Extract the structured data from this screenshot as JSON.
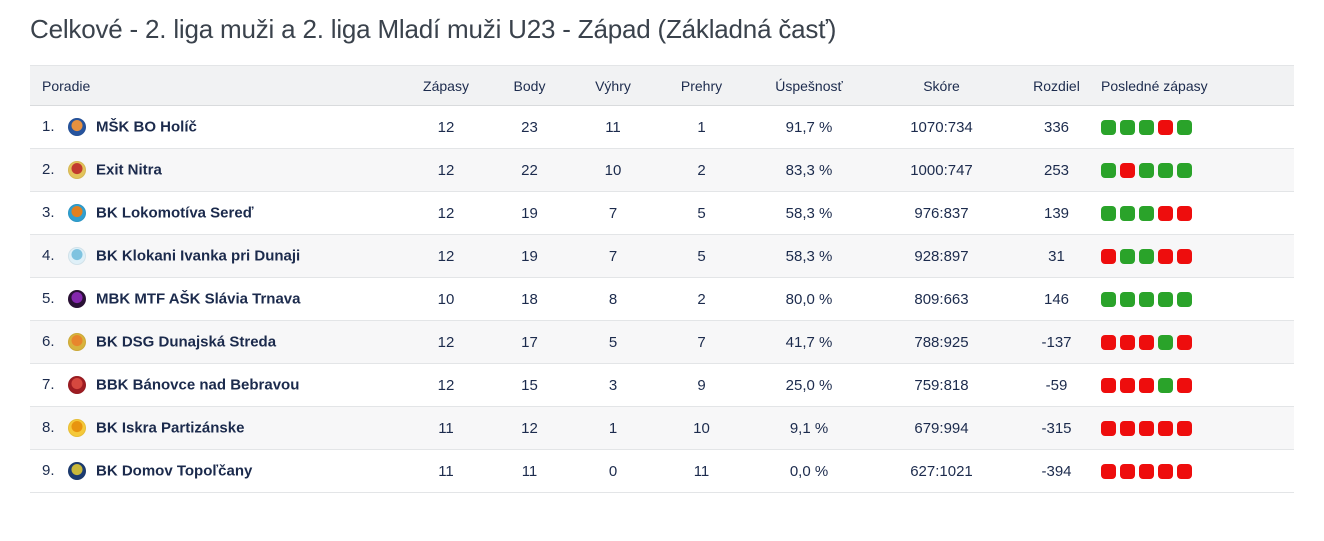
{
  "page": {
    "title": "Celkové - 2. liga muži a 2. liga Mladí muži U23 - Západ (Základná časť)"
  },
  "table": {
    "columns": [
      "Poradie",
      "Zápasy",
      "Body",
      "Výhry",
      "Prehry",
      "Úspešnosť",
      "Skóre",
      "Rozdiel",
      "Posledné zápasy"
    ],
    "result_colors": {
      "win": "#2aa32a",
      "loss": "#ee0d0d"
    },
    "rows": [
      {
        "rank": "1.",
        "team": "MŠK BO Holíč",
        "logo_colors": [
          "#27549e",
          "#e8913f"
        ],
        "games": "12",
        "points": "23",
        "wins": "11",
        "losses": "1",
        "success": "91,7 %",
        "score": "1070:734",
        "diff": "336",
        "last_games": [
          "W",
          "W",
          "W",
          "L",
          "W"
        ]
      },
      {
        "rank": "2.",
        "team": "Exit Nitra",
        "logo_colors": [
          "#e3c35a",
          "#c23a2e"
        ],
        "games": "12",
        "points": "22",
        "wins": "10",
        "losses": "2",
        "success": "83,3 %",
        "score": "1000:747",
        "diff": "253",
        "last_games": [
          "W",
          "L",
          "W",
          "W",
          "W"
        ]
      },
      {
        "rank": "3.",
        "team": "BK Lokomotíva Sereď",
        "logo_colors": [
          "#2f9fd0",
          "#e2801f"
        ],
        "games": "12",
        "points": "19",
        "wins": "7",
        "losses": "5",
        "success": "58,3 %",
        "score": "976:837",
        "diff": "139",
        "last_games": [
          "W",
          "W",
          "W",
          "L",
          "L"
        ]
      },
      {
        "rank": "4.",
        "team": "BK Klokani Ivanka pri Dunaji",
        "logo_colors": [
          "#dff0f8",
          "#7ec3e0"
        ],
        "games": "12",
        "points": "19",
        "wins": "7",
        "losses": "5",
        "success": "58,3 %",
        "score": "928:897",
        "diff": "31",
        "last_games": [
          "L",
          "W",
          "W",
          "L",
          "L"
        ]
      },
      {
        "rank": "5.",
        "team": "MBK MTF AŠK Slávia Trnava",
        "logo_colors": [
          "#2a1136",
          "#8427ae"
        ],
        "games": "10",
        "points": "18",
        "wins": "8",
        "losses": "2",
        "success": "80,0 %",
        "score": "809:663",
        "diff": "146",
        "last_games": [
          "W",
          "W",
          "W",
          "W",
          "W"
        ]
      },
      {
        "rank": "6.",
        "team": "BK DSG Dunajská Streda",
        "logo_colors": [
          "#d8b33c",
          "#e8862c"
        ],
        "games": "12",
        "points": "17",
        "wins": "5",
        "losses": "7",
        "success": "41,7 %",
        "score": "788:925",
        "diff": "-137",
        "last_games": [
          "L",
          "L",
          "L",
          "W",
          "L"
        ]
      },
      {
        "rank": "7.",
        "team": "BBK Bánovce nad Bebravou",
        "logo_colors": [
          "#9e1c22",
          "#d6483f"
        ],
        "games": "12",
        "points": "15",
        "wins": "3",
        "losses": "9",
        "success": "25,0 %",
        "score": "759:818",
        "diff": "-59",
        "last_games": [
          "L",
          "L",
          "L",
          "W",
          "L"
        ]
      },
      {
        "rank": "8.",
        "team": "BK Iskra Partizánske",
        "logo_colors": [
          "#f5c93a",
          "#e8940f"
        ],
        "games": "11",
        "points": "12",
        "wins": "1",
        "losses": "10",
        "success": "9,1 %",
        "score": "679:994",
        "diff": "-315",
        "last_games": [
          "L",
          "L",
          "L",
          "L",
          "L"
        ]
      },
      {
        "rank": "9.",
        "team": "BK Domov Topoľčany",
        "logo_colors": [
          "#1c3b70",
          "#c9b83a"
        ],
        "games": "11",
        "points": "11",
        "wins": "0",
        "losses": "11",
        "success": "0,0 %",
        "score": "627:1021",
        "diff": "-394",
        "last_games": [
          "L",
          "L",
          "L",
          "L",
          "L"
        ]
      }
    ]
  }
}
